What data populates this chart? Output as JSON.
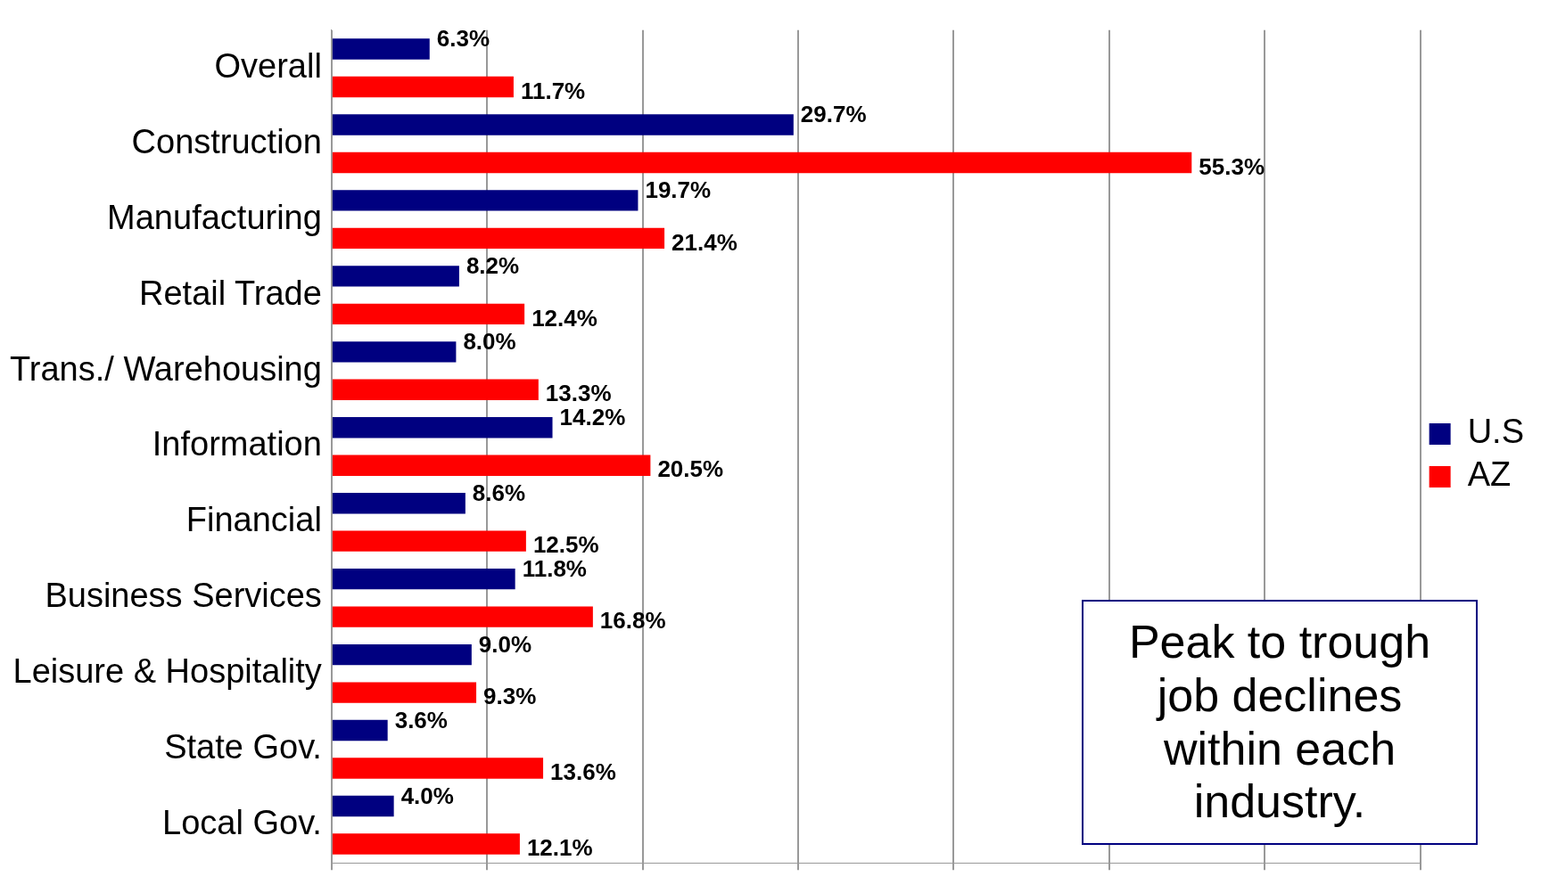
{
  "chart_data": {
    "type": "bar",
    "orientation": "horizontal",
    "categories": [
      "Overall",
      "Construction",
      "Manufacturing",
      "Retail Trade",
      "Trans./ Warehousing",
      "Information",
      "Financial",
      "Business Services",
      "Leisure & Hospitality",
      "State Gov.",
      "Local Gov."
    ],
    "series": [
      {
        "name": "U.S",
        "color": "#000080",
        "values": [
          6.3,
          29.7,
          19.7,
          8.2,
          8.0,
          14.2,
          8.6,
          11.8,
          9.0,
          3.6,
          4.0
        ],
        "value_labels": [
          "6.3%",
          "29.7%",
          "19.7%",
          "8.2%",
          "8.0%",
          "14.2%",
          "8.6%",
          "11.8%",
          "9.0%",
          "3.6%",
          "4.0%"
        ]
      },
      {
        "name": "AZ",
        "color": "#ff0000",
        "values": [
          11.7,
          55.3,
          21.4,
          12.4,
          13.3,
          20.5,
          12.5,
          16.8,
          9.3,
          13.6,
          12.1
        ],
        "value_labels": [
          "11.7%",
          "55.3%",
          "21.4%",
          "12.4%",
          "13.3%",
          "20.5%",
          "12.5%",
          "16.8%",
          "9.3%",
          "13.6%",
          "12.1%"
        ]
      }
    ],
    "xlim": [
      0,
      70
    ],
    "xticks": [
      {
        "value": 0,
        "label": null
      },
      {
        "value": 10,
        "label": null
      },
      {
        "value": 20,
        "label": null
      },
      {
        "value": 30,
        "label": null
      },
      {
        "value": 40,
        "label": null
      },
      {
        "value": 50,
        "label": null
      },
      {
        "value": 60,
        "label": null
      },
      {
        "value": 70,
        "label": null
      }
    ],
    "tick_labels": "y",
    "grid": "x",
    "legend": "right",
    "annotations": [
      "Peak to trough job declines within each industry."
    ]
  }
}
